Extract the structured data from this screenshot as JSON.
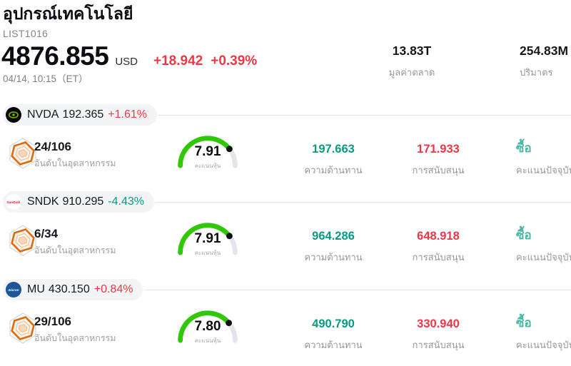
{
  "header": {
    "title": "อุปกรณ์เทคโนโลยี",
    "symbol": "LIST1016",
    "price": "4876.855",
    "currency": "USD",
    "change_abs": "+18.942",
    "change_pct": "+0.39%",
    "timestamp": "04/14, 10:15（ET）",
    "stats": [
      {
        "value": "13.83T",
        "label": "มูลค่าตลาด"
      },
      {
        "value": "254.83M",
        "label": "ปริมาตร"
      }
    ]
  },
  "colors": {
    "up": "#f23645",
    "down": "#089981",
    "resistance": "#089981",
    "support": "#f23645",
    "signal_buy": "#4db6a4",
    "gauge_fill": "#2fc803",
    "gauge_track": "#e3e5ea",
    "nvidia_green": "#76b900",
    "badge_orange": "#e0690a"
  },
  "rows": [
    {
      "ticker": "NVDA",
      "price": "192.365",
      "change": "+1.61%",
      "change_color": "#f23645",
      "logo": {
        "kind": "nvidia"
      },
      "rank": {
        "value": "24/106",
        "label": "อันดับในอุตสาหกรรม"
      },
      "gauge": {
        "score": 7.91,
        "display": "7.91",
        "label": "คะแนนหุ้น"
      },
      "resistance": {
        "value": "197.663",
        "label": "ความต้านทาน"
      },
      "support": {
        "value": "171.933",
        "label": "การสนับสนุน"
      },
      "signal": {
        "value": "ซื้อ",
        "label": "คะแนนปัจจุบัน"
      }
    },
    {
      "ticker": "SNDK",
      "price": "910.295",
      "change": "-4.43%",
      "change_color": "#089981",
      "logo": {
        "kind": "sandisk",
        "text": "SanDisk"
      },
      "rank": {
        "value": "6/34",
        "label": "อันดับในอุตสาหกรรม"
      },
      "gauge": {
        "score": 7.91,
        "display": "7.91",
        "label": "คะแนนหุ้น"
      },
      "resistance": {
        "value": "964.286",
        "label": "ความต้านทาน"
      },
      "support": {
        "value": "648.918",
        "label": "การสนับสนุน"
      },
      "signal": {
        "value": "ซื้อ",
        "label": "คะแนนปัจจุบัน"
      }
    },
    {
      "ticker": "MU",
      "price": "430.150",
      "change": "+0.84%",
      "change_color": "#f23645",
      "logo": {
        "kind": "micron",
        "text": "micron"
      },
      "rank": {
        "value": "29/106",
        "label": "อันดับในอุตสาหกรรม"
      },
      "gauge": {
        "score": 7.8,
        "display": "7.80",
        "label": "คะแนนหุ้น"
      },
      "resistance": {
        "value": "490.790",
        "label": "ความต้านทาน"
      },
      "support": {
        "value": "330.940",
        "label": "การสนับสนุน"
      },
      "signal": {
        "value": "ซื้อ",
        "label": "คะแนนปัจจุบัน"
      }
    }
  ]
}
